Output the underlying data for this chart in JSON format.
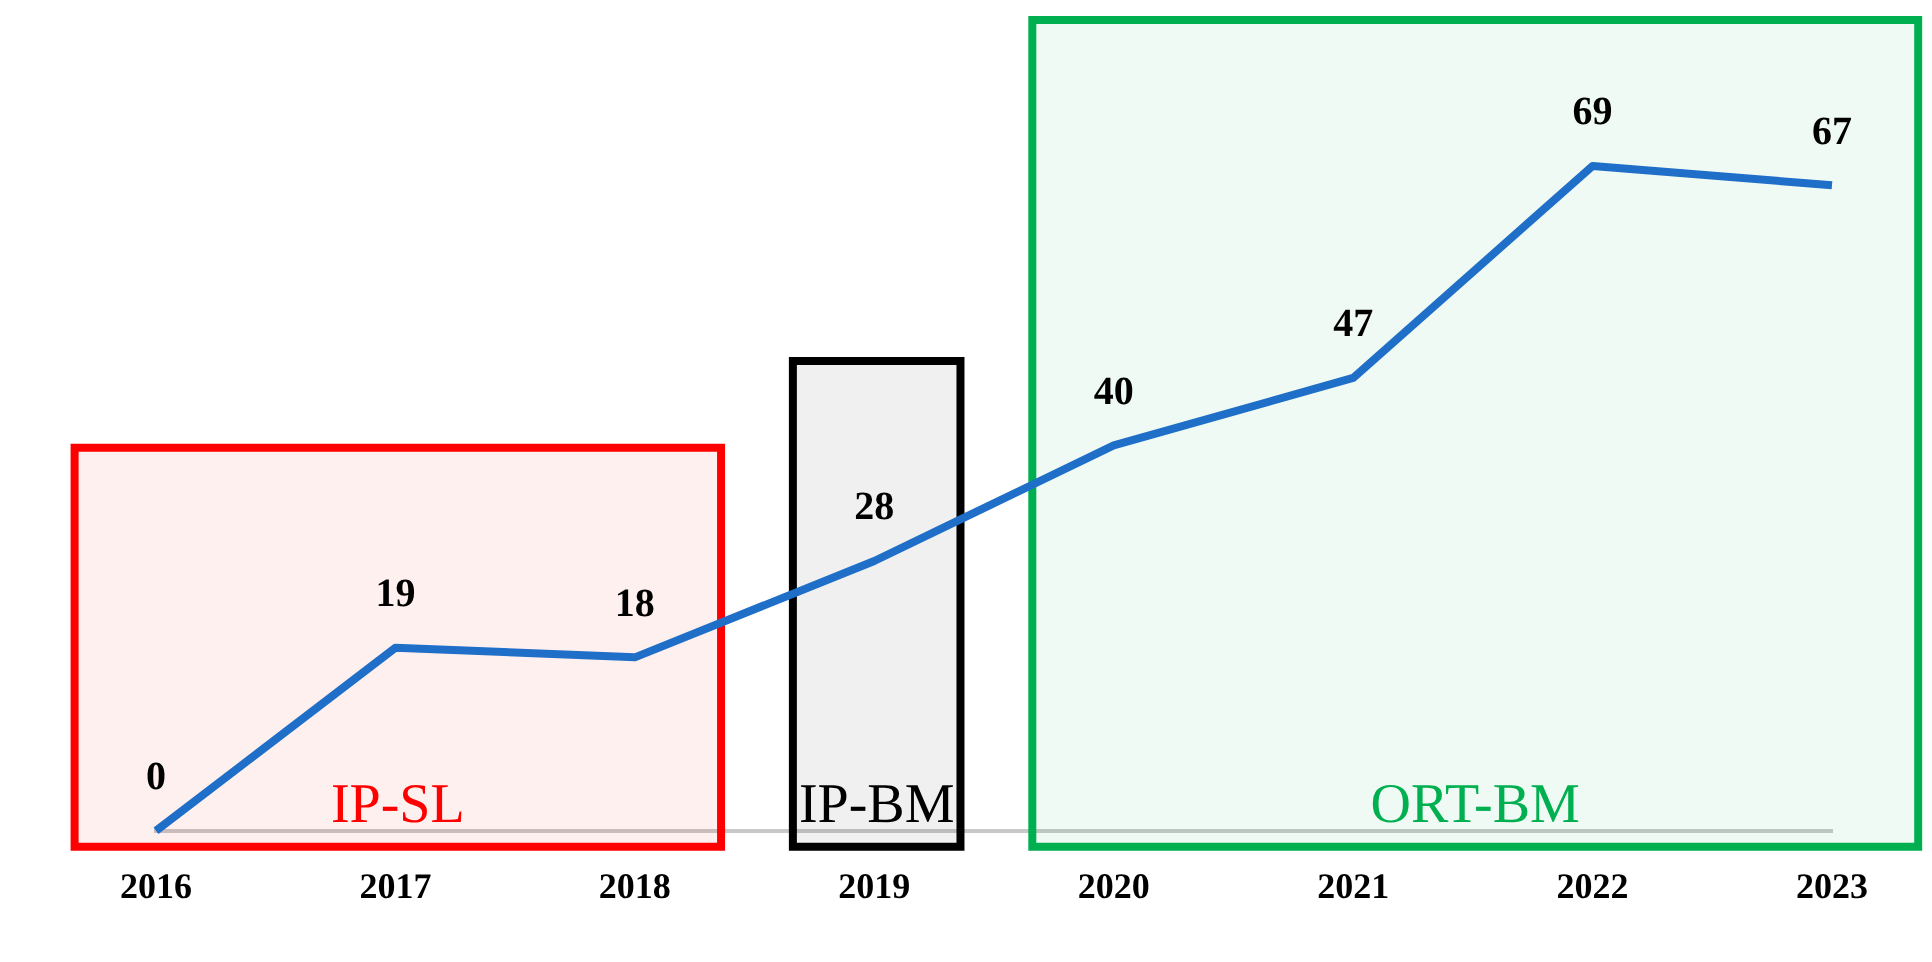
{
  "chart_data": {
    "type": "line",
    "categories": [
      "2016",
      "2017",
      "2018",
      "2019",
      "2020",
      "2021",
      "2022",
      "2023"
    ],
    "series": [
      {
        "color": "#1f6fc8",
        "values": [
          0,
          19,
          18,
          28,
          40,
          47,
          69,
          67
        ]
      }
    ],
    "data_labels": true,
    "relative": false,
    "grid": false,
    "legend": false,
    "marker": "none",
    "line_style": "solid",
    "bands": [
      {
        "axis": "x",
        "from": "2016",
        "to": "2018",
        "label": "IP-SL",
        "color": "#ff0000"
      },
      {
        "axis": "x",
        "from": "2019",
        "to": "2019",
        "label": "IP-BM",
        "color": "#000000"
      },
      {
        "axis": "x",
        "from": "2020",
        "to": "2023",
        "label": "ORT-BM",
        "color": "#00b050"
      }
    ]
  }
}
